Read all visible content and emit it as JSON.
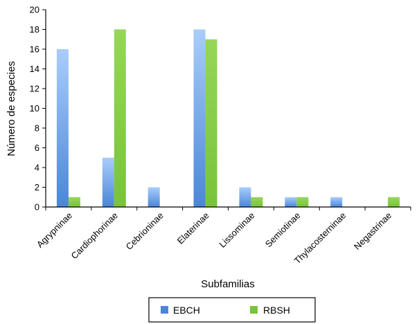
{
  "chart_data": {
    "type": "bar",
    "title": "",
    "xlabel": "Subfamilias",
    "ylabel": "Número de especies",
    "ylim": [
      0,
      20
    ],
    "ytick_step": 2,
    "grid": false,
    "legend_position": "bottom",
    "categories": [
      "Agrypninae",
      "Cardiophorinae",
      "Cebrioninae",
      "Elaterinae",
      "Lissominae",
      "Semiotinae",
      "Thylacosterninae",
      "Negastrinae"
    ],
    "series": [
      {
        "name": "EBCH",
        "color": "#4a86d8",
        "light_color": "#a9cdfb",
        "values": [
          16,
          5,
          2,
          18,
          2,
          1,
          1,
          0
        ]
      },
      {
        "name": "RBSH",
        "color": "#78c43a",
        "light_color": "#96d65a",
        "values": [
          1,
          18,
          0,
          17,
          1,
          1,
          0,
          1
        ]
      }
    ]
  }
}
